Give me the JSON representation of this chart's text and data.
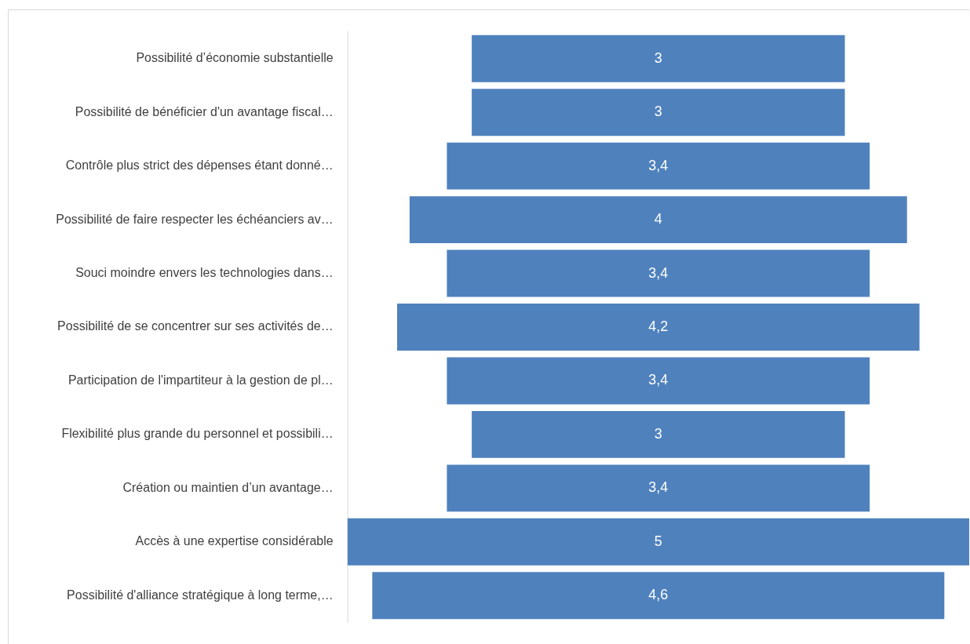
{
  "chart_data": {
    "type": "other",
    "categories": [
      "Possibilité d’économie substantielle",
      "Possibilité de bénéficier d'un avantage fiscal…",
      "Contrôle plus strict des dépenses étant donné…",
      "Possibilité de faire respecter les échéanciers av…",
      "Souci moindre envers les technologies dans…",
      "Possibilité de se concentrer sur ses activités de…",
      "Participation de l'impartiteur à la gestion de pl…",
      "Flexibilité plus grande du personnel et possibili…",
      "Création ou maintien d’un avantage…",
      "Accès à une expertise considérable",
      "Possibilité d'alliance stratégique à long terme,…"
    ],
    "values": [
      3,
      3,
      3.4,
      4,
      3.4,
      4.2,
      3.4,
      3,
      3.4,
      5,
      4.6
    ],
    "color": "#4f81bd",
    "value_labels": [
      "3",
      "3",
      "3,4",
      "4",
      "3,4",
      "4,2",
      "3,4",
      "3",
      "3,4",
      "5",
      "4,6"
    ]
  }
}
